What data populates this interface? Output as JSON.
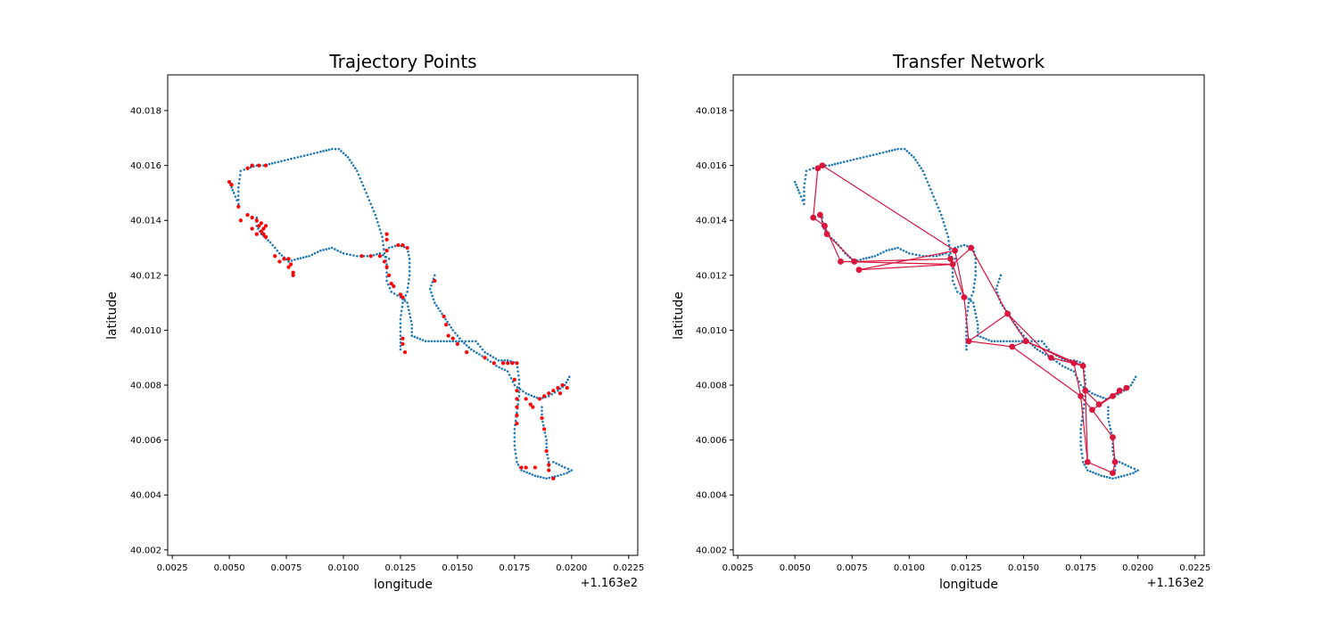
{
  "colors": {
    "trajectory": "#1f77b4",
    "stops": "#ff0000",
    "network": "#dc143c"
  },
  "chart_data": [
    {
      "type": "scatter",
      "title": "Trajectory Points",
      "xlabel": "longitude",
      "ylabel": "latitude",
      "x_offset_label": "+1.163e2",
      "xlim": [
        0.0023,
        0.0229
      ],
      "ylim": [
        40.0018,
        40.0193
      ],
      "x_ticks": [
        "0.0025",
        "0.0050",
        "0.0075",
        "0.0100",
        "0.0125",
        "0.0150",
        "0.0175",
        "0.0200",
        "0.0225"
      ],
      "y_ticks": [
        "40.002",
        "40.004",
        "40.006",
        "40.008",
        "40.010",
        "40.012",
        "40.014",
        "40.016",
        "40.018"
      ],
      "grid": false,
      "legend": "none",
      "trajectory_path": [
        [
          0.005,
          40.0154
        ],
        [
          0.0051,
          40.0152
        ],
        [
          0.0052,
          40.015
        ],
        [
          0.0054,
          40.0146
        ],
        [
          0.0054,
          40.0152
        ],
        [
          0.0055,
          40.0158
        ],
        [
          0.0058,
          40.0159
        ],
        [
          0.0062,
          40.016
        ],
        [
          0.0065,
          40.016
        ],
        [
          0.007,
          40.0161
        ],
        [
          0.008,
          40.0163
        ],
        [
          0.009,
          40.0165
        ],
        [
          0.0095,
          40.0166
        ],
        [
          0.0098,
          40.0166
        ],
        [
          0.0102,
          40.0163
        ],
        [
          0.0106,
          40.0158
        ],
        [
          0.011,
          40.015
        ],
        [
          0.0114,
          40.0142
        ],
        [
          0.0117,
          40.0134
        ],
        [
          0.0118,
          40.0128
        ],
        [
          0.0119,
          40.0124
        ],
        [
          0.0119,
          40.0118
        ],
        [
          0.0121,
          40.0114
        ],
        [
          0.0125,
          40.0112
        ],
        [
          0.0128,
          40.011
        ],
        [
          0.013,
          40.0102
        ],
        [
          0.013,
          40.0098
        ],
        [
          0.0136,
          40.0096
        ],
        [
          0.0144,
          40.0096
        ],
        [
          0.0152,
          40.0096
        ],
        [
          0.0158,
          40.0096
        ],
        [
          0.0162,
          40.0092
        ],
        [
          0.0168,
          40.0089
        ],
        [
          0.0172,
          40.0089
        ],
        [
          0.0176,
          40.0088
        ],
        [
          0.0177,
          40.0082
        ],
        [
          0.0177,
          40.0076
        ],
        [
          0.0176,
          40.007
        ],
        [
          0.0175,
          40.0064
        ],
        [
          0.0175,
          40.0058
        ],
        [
          0.0176,
          40.0052
        ],
        [
          0.0178,
          40.0049
        ],
        [
          0.0184,
          40.0047
        ],
        [
          0.0189,
          40.0046
        ],
        [
          0.0194,
          40.0047
        ],
        [
          0.0198,
          40.0048
        ],
        [
          0.02,
          40.0049
        ],
        [
          0.0197,
          40.005
        ],
        [
          0.0192,
          40.0052
        ]
      ],
      "trajectory_path_2": [
        [
          0.012,
          40.0126
        ],
        [
          0.0116,
          40.0128
        ],
        [
          0.0112,
          40.0127
        ],
        [
          0.0106,
          40.0127
        ],
        [
          0.01,
          40.0128
        ],
        [
          0.0095,
          40.013
        ],
        [
          0.009,
          40.0129
        ],
        [
          0.0085,
          40.0127
        ],
        [
          0.008,
          40.0126
        ],
        [
          0.0076,
          40.0125
        ],
        [
          0.0072,
          40.0128
        ],
        [
          0.0068,
          40.0132
        ],
        [
          0.0064,
          40.0135
        ],
        [
          0.0062,
          40.0138
        ],
        [
          0.0062,
          40.0141
        ]
      ],
      "trajectory_path_3": [
        [
          0.012,
          40.013
        ],
        [
          0.0124,
          40.0131
        ],
        [
          0.0128,
          40.013
        ],
        [
          0.0129,
          40.0126
        ],
        [
          0.0129,
          40.012
        ],
        [
          0.0128,
          40.0114
        ],
        [
          0.0126,
          40.011
        ],
        [
          0.0125,
          40.0104
        ],
        [
          0.0125,
          40.0098
        ],
        [
          0.0125,
          40.0093
        ]
      ],
      "trajectory_path_4": [
        [
          0.014,
          40.012
        ],
        [
          0.0138,
          40.0115
        ],
        [
          0.014,
          40.011
        ],
        [
          0.0144,
          40.0105
        ],
        [
          0.0148,
          40.01
        ],
        [
          0.0152,
          40.0096
        ],
        [
          0.0156,
          40.0093
        ],
        [
          0.0162,
          40.009
        ],
        [
          0.0167,
          40.0087
        ],
        [
          0.0172,
          40.0085
        ],
        [
          0.0175,
          40.008
        ],
        [
          0.018,
          40.0077
        ],
        [
          0.0186,
          40.0075
        ],
        [
          0.019,
          40.0076
        ],
        [
          0.0194,
          40.0078
        ],
        [
          0.0197,
          40.008
        ],
        [
          0.0199,
          40.0083
        ]
      ],
      "trajectory_path_5": [
        [
          0.0187,
          40.0072
        ],
        [
          0.0187,
          40.0068
        ],
        [
          0.0188,
          40.0064
        ],
        [
          0.0189,
          40.006
        ],
        [
          0.0189,
          40.0056
        ],
        [
          0.019,
          40.0052
        ],
        [
          0.019,
          40.0049
        ]
      ],
      "stop_points": [
        [
          0.005,
          40.0154
        ],
        [
          0.0051,
          40.0153
        ],
        [
          0.0054,
          40.0145
        ],
        [
          0.0055,
          40.014
        ],
        [
          0.0058,
          40.0159
        ],
        [
          0.006,
          40.016
        ],
        [
          0.0063,
          40.016
        ],
        [
          0.0066,
          40.016
        ],
        [
          0.0058,
          40.0142
        ],
        [
          0.006,
          40.0141
        ],
        [
          0.0062,
          40.014
        ],
        [
          0.0064,
          40.0139
        ],
        [
          0.0065,
          40.0137
        ],
        [
          0.0065,
          40.0135
        ],
        [
          0.0064,
          40.0136
        ],
        [
          0.0063,
          40.0138
        ],
        [
          0.0062,
          40.0135
        ],
        [
          0.006,
          40.0137
        ],
        [
          0.0066,
          40.0138
        ],
        [
          0.0066,
          40.0134
        ],
        [
          0.007,
          40.0127
        ],
        [
          0.0072,
          40.0125
        ],
        [
          0.0074,
          40.0126
        ],
        [
          0.0076,
          40.0126
        ],
        [
          0.0077,
          40.0124
        ],
        [
          0.0078,
          40.0121
        ],
        [
          0.0078,
          40.012
        ],
        [
          0.0076,
          40.0123
        ],
        [
          0.0108,
          40.0127
        ],
        [
          0.0112,
          40.0127
        ],
        [
          0.0116,
          40.0127
        ],
        [
          0.0118,
          40.0125
        ],
        [
          0.0119,
          40.0123
        ],
        [
          0.0119,
          40.0129
        ],
        [
          0.0119,
          40.0133
        ],
        [
          0.0119,
          40.0135
        ],
        [
          0.012,
          40.012
        ],
        [
          0.0121,
          40.0117
        ],
        [
          0.0124,
          40.0131
        ],
        [
          0.0126,
          40.0131
        ],
        [
          0.0128,
          40.013
        ],
        [
          0.0122,
          40.0116
        ],
        [
          0.0125,
          40.0113
        ],
        [
          0.0126,
          40.0112
        ],
        [
          0.0126,
          40.0097
        ],
        [
          0.0127,
          40.0092
        ],
        [
          0.0126,
          40.0095
        ],
        [
          0.014,
          40.0118
        ],
        [
          0.0144,
          40.0105
        ],
        [
          0.0145,
          40.0102
        ],
        [
          0.0146,
          40.0098
        ],
        [
          0.0148,
          40.0097
        ],
        [
          0.015,
          40.0095
        ],
        [
          0.0154,
          40.0092
        ],
        [
          0.0162,
          40.009
        ],
        [
          0.0166,
          40.0088
        ],
        [
          0.017,
          40.0088
        ],
        [
          0.0172,
          40.0088
        ],
        [
          0.0174,
          40.0088
        ],
        [
          0.0176,
          40.0088
        ],
        [
          0.0175,
          40.0082
        ],
        [
          0.0176,
          40.0078
        ],
        [
          0.0176,
          40.0075
        ],
        [
          0.0176,
          40.0072
        ],
        [
          0.0176,
          40.0069
        ],
        [
          0.0176,
          40.0066
        ],
        [
          0.018,
          40.0075
        ],
        [
          0.0182,
          40.0073
        ],
        [
          0.0183,
          40.0072
        ],
        [
          0.0186,
          40.0075
        ],
        [
          0.0188,
          40.0076
        ],
        [
          0.019,
          40.0077
        ],
        [
          0.0192,
          40.0078
        ],
        [
          0.0194,
          40.0079
        ],
        [
          0.0196,
          40.008
        ],
        [
          0.0198,
          40.0079
        ],
        [
          0.0195,
          40.0077
        ],
        [
          0.0187,
          40.0068
        ],
        [
          0.0188,
          40.0064
        ],
        [
          0.0189,
          40.0056
        ],
        [
          0.019,
          40.0051
        ],
        [
          0.019,
          40.0049
        ],
        [
          0.0184,
          40.005
        ],
        [
          0.018,
          40.005
        ],
        [
          0.0178,
          40.005
        ],
        [
          0.0192,
          40.0046
        ]
      ]
    },
    {
      "type": "scatter",
      "title": "Transfer Network",
      "xlabel": "longitude",
      "ylabel": "latitude",
      "x_offset_label": "+1.163e2",
      "xlim": [
        0.0023,
        0.0229
      ],
      "ylim": [
        40.0018,
        40.0193
      ],
      "x_ticks": [
        "0.0025",
        "0.0050",
        "0.0075",
        "0.0100",
        "0.0125",
        "0.0150",
        "0.0175",
        "0.0200",
        "0.0225"
      ],
      "y_ticks": [
        "40.002",
        "40.004",
        "40.006",
        "40.008",
        "40.010",
        "40.012",
        "40.014",
        "40.016",
        "40.018"
      ],
      "grid": false,
      "legend": "none",
      "nodes": [
        [
          0.006,
          40.0159
        ],
        [
          0.0062,
          40.016
        ],
        [
          0.0058,
          40.0141
        ],
        [
          0.0061,
          40.0142
        ],
        [
          0.0063,
          40.0138
        ],
        [
          0.0064,
          40.0135
        ],
        [
          0.007,
          40.0125
        ],
        [
          0.0076,
          40.0125
        ],
        [
          0.0078,
          40.0122
        ],
        [
          0.0118,
          40.0126
        ],
        [
          0.012,
          40.0129
        ],
        [
          0.0119,
          40.0124
        ],
        [
          0.0124,
          40.0112
        ],
        [
          0.0127,
          40.013
        ],
        [
          0.0126,
          40.0096
        ],
        [
          0.0143,
          40.0106
        ],
        [
          0.0151,
          40.0096
        ],
        [
          0.0145,
          40.0094
        ],
        [
          0.0162,
          40.009
        ],
        [
          0.0172,
          40.0088
        ],
        [
          0.0176,
          40.0087
        ],
        [
          0.0175,
          40.0076
        ],
        [
          0.0177,
          40.0078
        ],
        [
          0.018,
          40.0071
        ],
        [
          0.0183,
          40.0073
        ],
        [
          0.0189,
          40.0076
        ],
        [
          0.0192,
          40.0078
        ],
        [
          0.0195,
          40.0079
        ],
        [
          0.0189,
          40.0061
        ],
        [
          0.0178,
          40.0052
        ],
        [
          0.019,
          40.0052
        ],
        [
          0.0189,
          40.0048
        ]
      ],
      "edges": [
        [
          0,
          2
        ],
        [
          0,
          1
        ],
        [
          1,
          10
        ],
        [
          2,
          4
        ],
        [
          3,
          5
        ],
        [
          4,
          6
        ],
        [
          5,
          7
        ],
        [
          6,
          7
        ],
        [
          7,
          9
        ],
        [
          8,
          10
        ],
        [
          6,
          11
        ],
        [
          8,
          11
        ],
        [
          9,
          12
        ],
        [
          10,
          12
        ],
        [
          11,
          13
        ],
        [
          13,
          15
        ],
        [
          12,
          14
        ],
        [
          14,
          15
        ],
        [
          14,
          17
        ],
        [
          15,
          16
        ],
        [
          15,
          18
        ],
        [
          17,
          16
        ],
        [
          16,
          19
        ],
        [
          16,
          20
        ],
        [
          18,
          20
        ],
        [
          19,
          21
        ],
        [
          20,
          22
        ],
        [
          17,
          21
        ],
        [
          21,
          23
        ],
        [
          22,
          24
        ],
        [
          23,
          25
        ],
        [
          24,
          26
        ],
        [
          25,
          27
        ],
        [
          23,
          28
        ],
        [
          22,
          29
        ],
        [
          28,
          30
        ],
        [
          29,
          31
        ],
        [
          30,
          31
        ],
        [
          21,
          29
        ]
      ]
    }
  ]
}
